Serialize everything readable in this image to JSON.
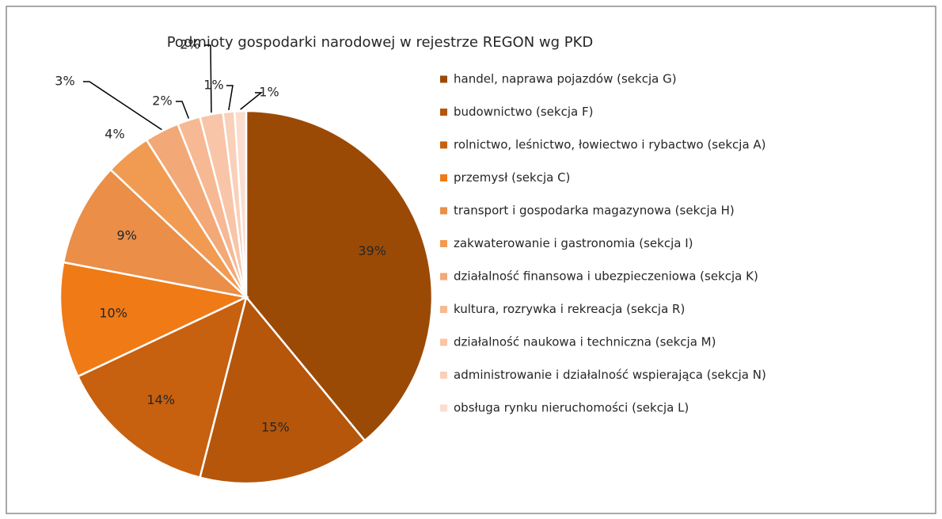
{
  "chart_data": {
    "type": "pie",
    "title": "Podmioty gospodarki narodowej w rejestrze REGON wg PKD",
    "categories": [
      "handel, naprawa pojazdów (sekcja G)",
      "budownictwo (sekcja F)",
      "rolnictwo, leśnictwo, łowiectwo i rybactwo (sekcja A)",
      "przemysł (sekcja C)",
      "transport i gospodarka magazynowa (sekcja H)",
      "zakwaterowanie i gastronomia (sekcja I)",
      "działalność finansowa i ubezpieczeniowa (sekcja K)",
      "kultura, rozrywka i rekreacja (sekcja R)",
      "działalność naukowa i techniczna (sekcja M)",
      "administrowanie i działalność wspierająca (sekcja N)",
      "obsługa rynku nieruchomości (sekcja L)"
    ],
    "values": [
      39,
      15,
      14,
      10,
      9,
      4,
      3,
      2,
      2,
      1,
      1
    ],
    "value_labels": [
      "39%",
      "15%",
      "14%",
      "10%",
      "9%",
      "4%",
      "3%",
      "2%",
      "2%",
      "1%",
      "1%"
    ],
    "colors": [
      "#9b4a06",
      "#b5560b",
      "#c7600f",
      "#f07a16",
      "#ea8e48",
      "#f19b52",
      "#f3a877",
      "#f6b994",
      "#f8c5a8",
      "#f9d0b9",
      "#fbddd0"
    ],
    "legend": "right"
  }
}
